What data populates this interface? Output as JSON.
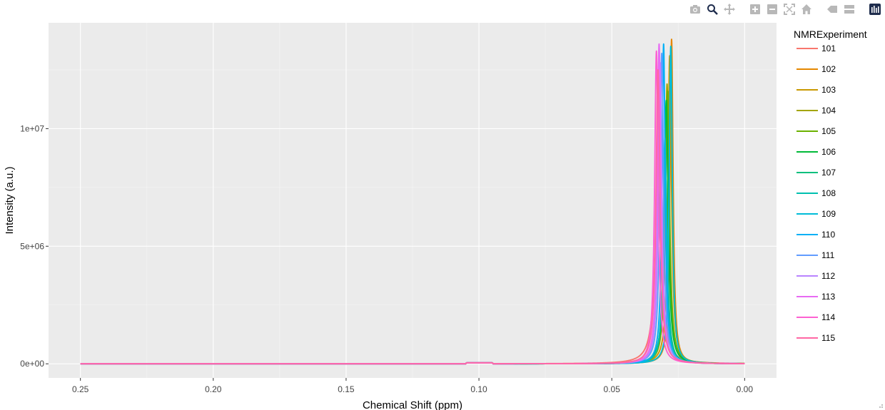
{
  "modebar": {
    "buttons": [
      {
        "name": "camera-icon",
        "title": "Download plot as a png"
      },
      {
        "name": "zoom-icon",
        "title": "Zoom"
      },
      {
        "name": "pan-icon",
        "title": "Pan"
      },
      {
        "name": "zoom-in-icon",
        "title": "Zoom in"
      },
      {
        "name": "zoom-out-icon",
        "title": "Zoom out"
      },
      {
        "name": "autoscale-icon",
        "title": "Autoscale"
      },
      {
        "name": "home-icon",
        "title": "Reset axes"
      },
      {
        "name": "hover-closest-icon",
        "title": "Show closest data on hover"
      },
      {
        "name": "hover-compare-icon",
        "title": "Compare data on hover"
      },
      {
        "name": "plotly-logo-icon",
        "title": "Produced with Plotly"
      }
    ],
    "active_color": "#1f2d4d",
    "inactive_color": "#b8b8b8"
  },
  "chart_data": {
    "type": "line",
    "title": "",
    "xlabel": "Chemical Shift (ppm)",
    "ylabel": "Intensity (a.u.)",
    "x_reversed": true,
    "xlim": [
      0.262,
      -0.012
    ],
    "ylim": [
      -600000,
      14500000
    ],
    "xticks": [
      0.25,
      0.2,
      0.15,
      0.1,
      0.05,
      0.0
    ],
    "xtick_labels": [
      "0.25",
      "0.20",
      "0.15",
      "0.10",
      "0.05",
      "0.00"
    ],
    "yticks": [
      0,
      5000000,
      10000000
    ],
    "ytick_labels": [
      "0e+00",
      "5e+06",
      "1e+07"
    ],
    "grid": true,
    "panel_background": "#ebebeb",
    "legend": {
      "title": "NMRExperiment",
      "position": "right"
    },
    "x_range": [
      0.25,
      0.0
    ],
    "baseline_bump": {
      "x_from": 0.105,
      "x_to": 0.095,
      "height": 40000
    },
    "series": [
      {
        "name": "101",
        "color": "#F8766D",
        "peak_x": 0.0325,
        "peak_y": 6900000,
        "width": 0.0016
      },
      {
        "name": "102",
        "color": "#E58700",
        "peak_x": 0.0275,
        "peak_y": 13800000,
        "width": 0.0007
      },
      {
        "name": "103",
        "color": "#C99800",
        "peak_x": 0.0282,
        "peak_y": 13100000,
        "width": 0.0008
      },
      {
        "name": "104",
        "color": "#A3A500",
        "peak_x": 0.0292,
        "peak_y": 11900000,
        "width": 0.0008
      },
      {
        "name": "105",
        "color": "#6BB100",
        "peak_x": 0.029,
        "peak_y": 11600000,
        "width": 0.0009
      },
      {
        "name": "106",
        "color": "#00BA38",
        "peak_x": 0.0295,
        "peak_y": 11200000,
        "width": 0.0009
      },
      {
        "name": "107",
        "color": "#00BF7D",
        "peak_x": 0.0298,
        "peak_y": 8200000,
        "width": 0.0009
      },
      {
        "name": "108",
        "color": "#00C0AF",
        "peak_x": 0.03,
        "peak_y": 9600000,
        "width": 0.0008
      },
      {
        "name": "109",
        "color": "#00BCD8",
        "peak_x": 0.0278,
        "peak_y": 13500000,
        "width": 0.0007
      },
      {
        "name": "110",
        "color": "#00B0F6",
        "peak_x": 0.0305,
        "peak_y": 13600000,
        "width": 0.0007
      },
      {
        "name": "111",
        "color": "#619CFF",
        "peak_x": 0.0312,
        "peak_y": 13200000,
        "width": 0.0008
      },
      {
        "name": "112",
        "color": "#B983FF",
        "peak_x": 0.0318,
        "peak_y": 12800000,
        "width": 0.0008
      },
      {
        "name": "113",
        "color": "#E76BF3",
        "peak_x": 0.0322,
        "peak_y": 13600000,
        "width": 0.0008
      },
      {
        "name": "114",
        "color": "#FD61D1",
        "peak_x": 0.0332,
        "peak_y": 13300000,
        "width": 0.0008
      },
      {
        "name": "115",
        "color": "#FF67A4",
        "peak_x": 0.0326,
        "peak_y": 12500000,
        "width": 0.0009
      }
    ]
  }
}
